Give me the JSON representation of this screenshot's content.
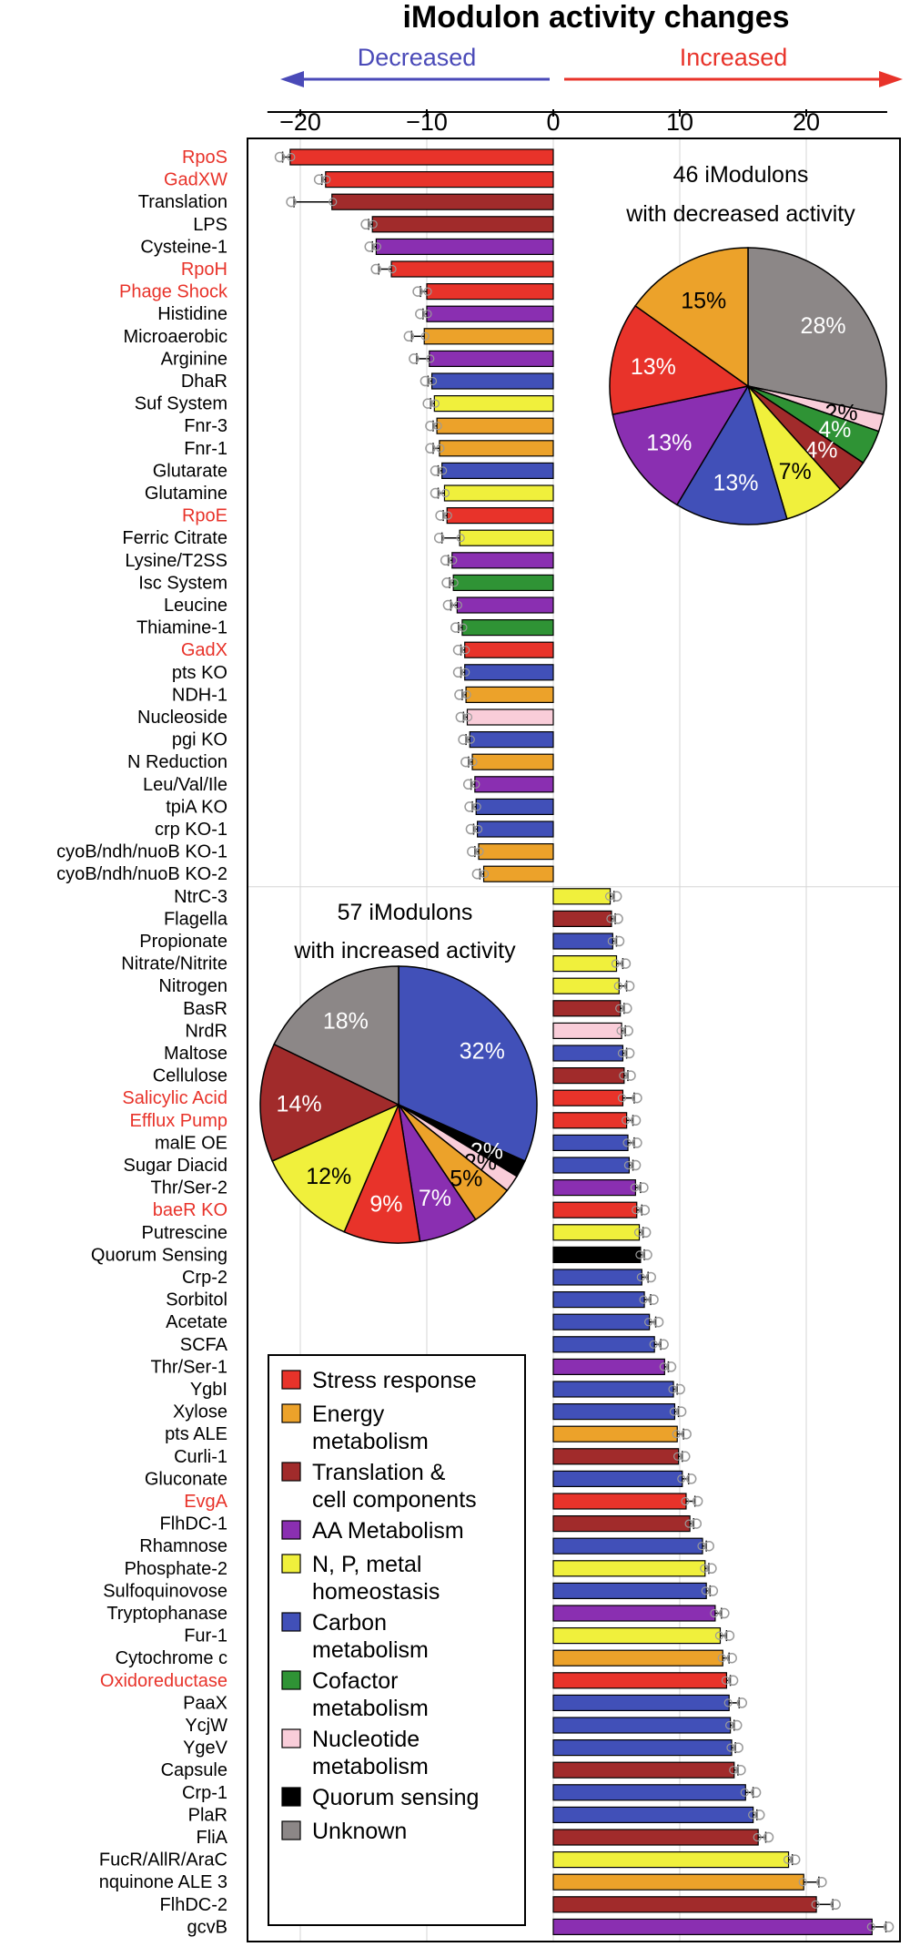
{
  "chart_data": [
    {
      "type": "bar",
      "orientation": "horizontal",
      "title": "iModulon activity changes",
      "direction_labels": {
        "decreased": "Decreased",
        "increased": "Increased"
      },
      "xlim": [
        -23.5,
        27
      ],
      "xticks": [
        -20,
        -10,
        0,
        10,
        20
      ],
      "grid": true,
      "colors": {
        "Stress response": "#e8332a",
        "Energy metabolism": "#eca22a",
        "Translation & cell components": "#a12b2b",
        "AA Metabolism": "#8a2fb1",
        "N, P, metal homeostasis": "#f0f03c",
        "Carbon metabolism": "#4150b8",
        "Cofactor metabolism": "#2f9335",
        "Nucleotide metabolism": "#f9cdd9",
        "Quorum sensing": "#000000",
        "Unknown": "#8c8787"
      },
      "label_colors": {
        "highlight": "#e8332a",
        "normal": "#000000"
      },
      "legend": {
        "position": "bottom-left",
        "entries": [
          {
            "category": "Stress response",
            "lines": [
              "Stress response"
            ]
          },
          {
            "category": "Energy metabolism",
            "lines": [
              "Energy",
              "metabolism"
            ]
          },
          {
            "category": "Translation & cell components",
            "lines": [
              "Translation &",
              "cell components"
            ]
          },
          {
            "category": "AA Metabolism",
            "lines": [
              "AA Metabolism"
            ]
          },
          {
            "category": "N, P, metal homeostasis",
            "lines": [
              "N, P, metal",
              "homeostasis"
            ]
          },
          {
            "category": "Carbon metabolism",
            "lines": [
              "Carbon",
              "metabolism"
            ]
          },
          {
            "category": "Cofactor metabolism",
            "lines": [
              "Cofactor",
              "metabolism"
            ]
          },
          {
            "category": "Nucleotide metabolism",
            "lines": [
              "Nucleotide",
              "metabolism"
            ]
          },
          {
            "category": "Quorum sensing",
            "lines": [
              "Quorum sensing"
            ]
          },
          {
            "category": "Unknown",
            "lines": [
              "Unknown"
            ]
          }
        ]
      },
      "bars": [
        {
          "label": "RpoS",
          "value": -20.8,
          "err": 0.6,
          "category": "Stress response",
          "highlight": true
        },
        {
          "label": "GadXW",
          "value": -18.0,
          "err": 0.3,
          "category": "Stress response",
          "highlight": true
        },
        {
          "label": "Translation",
          "value": -17.5,
          "err": 3.0,
          "category": "Translation & cell components",
          "highlight": false
        },
        {
          "label": "LPS",
          "value": -14.3,
          "err": 0.3,
          "category": "Translation & cell components",
          "highlight": false
        },
        {
          "label": "Cysteine-1",
          "value": -14.0,
          "err": 0.3,
          "category": "AA Metabolism",
          "highlight": false
        },
        {
          "label": "RpoH",
          "value": -12.8,
          "err": 1.0,
          "category": "Stress response",
          "highlight": true
        },
        {
          "label": "Phage Shock",
          "value": -10.0,
          "err": 0.5,
          "category": "Stress response",
          "highlight": true
        },
        {
          "label": "Histidine",
          "value": -10.0,
          "err": 0.3,
          "category": "AA Metabolism",
          "highlight": false
        },
        {
          "label": "Microaerobic",
          "value": -10.2,
          "err": 1.0,
          "category": "Energy metabolism",
          "highlight": false
        },
        {
          "label": "Arginine",
          "value": -9.8,
          "err": 1.0,
          "category": "AA Metabolism",
          "highlight": false
        },
        {
          "label": "DhaR",
          "value": -9.6,
          "err": 0.3,
          "category": "Carbon metabolism",
          "highlight": false
        },
        {
          "label": "Suf System",
          "value": -9.4,
          "err": 0.3,
          "category": "N, P, metal homeostasis",
          "highlight": false
        },
        {
          "label": "Fnr-3",
          "value": -9.2,
          "err": 0.3,
          "category": "Energy metabolism",
          "highlight": false
        },
        {
          "label": "Fnr-1",
          "value": -9.0,
          "err": 0.5,
          "category": "Energy metabolism",
          "highlight": false
        },
        {
          "label": "Glutarate",
          "value": -8.8,
          "err": 0.3,
          "category": "Carbon metabolism",
          "highlight": false
        },
        {
          "label": "Glutamine",
          "value": -8.6,
          "err": 0.5,
          "category": "N, P, metal homeostasis",
          "highlight": false
        },
        {
          "label": "RpoE",
          "value": -8.4,
          "err": 0.3,
          "category": "Stress response",
          "highlight": true
        },
        {
          "label": "Ferric Citrate",
          "value": -7.4,
          "err": 1.4,
          "category": "N, P, metal homeostasis",
          "highlight": false
        },
        {
          "label": "Lysine/T2SS",
          "value": -8.0,
          "err": 0.3,
          "category": "AA Metabolism",
          "highlight": false
        },
        {
          "label": "Isc System",
          "value": -7.9,
          "err": 0.3,
          "category": "Cofactor metabolism",
          "highlight": false
        },
        {
          "label": "Leucine",
          "value": -7.6,
          "err": 0.5,
          "category": "AA Metabolism",
          "highlight": false
        },
        {
          "label": "Thiamine-1",
          "value": -7.2,
          "err": 0.3,
          "category": "Cofactor metabolism",
          "highlight": false
        },
        {
          "label": "GadX",
          "value": -7.0,
          "err": 0.3,
          "category": "Stress response",
          "highlight": true
        },
        {
          "label": "pts KO",
          "value": -7.0,
          "err": 0.3,
          "category": "Carbon metabolism",
          "highlight": false
        },
        {
          "label": "NDH-1",
          "value": -6.9,
          "err": 0.3,
          "category": "Energy metabolism",
          "highlight": false
        },
        {
          "label": "Nucleoside",
          "value": -6.8,
          "err": 0.3,
          "category": "Nucleotide metabolism",
          "highlight": false
        },
        {
          "label": "pgi KO",
          "value": -6.6,
          "err": 0.3,
          "category": "Carbon metabolism",
          "highlight": false
        },
        {
          "label": "N Reduction",
          "value": -6.4,
          "err": 0.3,
          "category": "Energy metabolism",
          "highlight": false
        },
        {
          "label": "Leu/Val/Ile",
          "value": -6.2,
          "err": 0.3,
          "category": "AA Metabolism",
          "highlight": false
        },
        {
          "label": "tpiA KO",
          "value": -6.1,
          "err": 0.3,
          "category": "Carbon metabolism",
          "highlight": false
        },
        {
          "label": "crp KO-1",
          "value": -6.0,
          "err": 0.3,
          "category": "Carbon metabolism",
          "highlight": false
        },
        {
          "label": "cyoB/ndh/nuoB KO-1",
          "value": -5.9,
          "err": 0.3,
          "category": "Energy metabolism",
          "highlight": false
        },
        {
          "label": "cyoB/ndh/nuoB KO-2",
          "value": -5.5,
          "err": 0.3,
          "category": "Energy metabolism",
          "highlight": false
        },
        {
          "label": "NtrC-3",
          "value": 4.5,
          "err": 0.3,
          "category": "N, P, metal homeostasis",
          "highlight": false
        },
        {
          "label": "Flagella",
          "value": 4.6,
          "err": 0.3,
          "category": "Translation & cell components",
          "highlight": false
        },
        {
          "label": "Propionate",
          "value": 4.7,
          "err": 0.3,
          "category": "Carbon metabolism",
          "highlight": false
        },
        {
          "label": "Nitrate/Nitrite",
          "value": 5.0,
          "err": 0.5,
          "category": "N, P, metal homeostasis",
          "highlight": false
        },
        {
          "label": "Nitrogen",
          "value": 5.2,
          "err": 0.6,
          "category": "N, P, metal homeostasis",
          "highlight": false
        },
        {
          "label": "BasR",
          "value": 5.3,
          "err": 0.3,
          "category": "Translation & cell components",
          "highlight": false
        },
        {
          "label": "NrdR",
          "value": 5.4,
          "err": 0.3,
          "category": "Nucleotide metabolism",
          "highlight": false
        },
        {
          "label": "Maltose",
          "value": 5.5,
          "err": 0.3,
          "category": "Carbon metabolism",
          "highlight": false
        },
        {
          "label": "Cellulose",
          "value": 5.6,
          "err": 0.3,
          "category": "Translation & cell components",
          "highlight": false
        },
        {
          "label": "Salicylic Acid",
          "value": 5.5,
          "err": 0.9,
          "category": "Stress response",
          "highlight": true
        },
        {
          "label": "Efflux Pump",
          "value": 5.8,
          "err": 0.5,
          "category": "Stress response",
          "highlight": true
        },
        {
          "label": "malE OE",
          "value": 5.9,
          "err": 0.5,
          "category": "Carbon metabolism",
          "highlight": false
        },
        {
          "label": "Sugar Diacid",
          "value": 6.0,
          "err": 0.3,
          "category": "Carbon metabolism",
          "highlight": false
        },
        {
          "label": "Thr/Ser-2",
          "value": 6.5,
          "err": 0.4,
          "category": "AA Metabolism",
          "highlight": false
        },
        {
          "label": "baeR KO",
          "value": 6.6,
          "err": 0.4,
          "category": "Stress response",
          "highlight": true
        },
        {
          "label": "Putrescine",
          "value": 6.8,
          "err": 0.3,
          "category": "N, P, metal homeostasis",
          "highlight": false
        },
        {
          "label": "Quorum Sensing",
          "value": 6.9,
          "err": 0.3,
          "category": "Quorum sensing",
          "highlight": false
        },
        {
          "label": "Crp-2",
          "value": 7.0,
          "err": 0.5,
          "category": "Carbon metabolism",
          "highlight": false
        },
        {
          "label": "Sorbitol",
          "value": 7.2,
          "err": 0.5,
          "category": "Carbon metabolism",
          "highlight": false
        },
        {
          "label": "Acetate",
          "value": 7.6,
          "err": 0.5,
          "category": "Carbon metabolism",
          "highlight": false
        },
        {
          "label": "SCFA",
          "value": 8.0,
          "err": 0.5,
          "category": "Carbon metabolism",
          "highlight": false
        },
        {
          "label": "Thr/Ser-1",
          "value": 8.8,
          "err": 0.3,
          "category": "AA Metabolism",
          "highlight": false
        },
        {
          "label": "YgbI",
          "value": 9.5,
          "err": 0.3,
          "category": "Carbon metabolism",
          "highlight": false
        },
        {
          "label": "Xylose",
          "value": 9.6,
          "err": 0.3,
          "category": "Carbon metabolism",
          "highlight": false
        },
        {
          "label": "pts ALE",
          "value": 9.8,
          "err": 0.5,
          "category": "Energy metabolism",
          "highlight": false
        },
        {
          "label": "Curli-1",
          "value": 9.9,
          "err": 0.3,
          "category": "Translation & cell components",
          "highlight": false
        },
        {
          "label": "Gluconate",
          "value": 10.2,
          "err": 0.5,
          "category": "Carbon metabolism",
          "highlight": false
        },
        {
          "label": "EvgA",
          "value": 10.5,
          "err": 0.7,
          "category": "Stress response",
          "highlight": true
        },
        {
          "label": "FlhDC-1",
          "value": 10.8,
          "err": 0.3,
          "category": "Translation & cell components",
          "highlight": false
        },
        {
          "label": "Rhamnose",
          "value": 11.8,
          "err": 0.3,
          "category": "Carbon metabolism",
          "highlight": false
        },
        {
          "label": "Phosphate-2",
          "value": 12.0,
          "err": 0.3,
          "category": "N, P, metal homeostasis",
          "highlight": false
        },
        {
          "label": "Sulfoquinovose",
          "value": 12.1,
          "err": 0.3,
          "category": "Carbon metabolism",
          "highlight": false
        },
        {
          "label": "Tryptophanase",
          "value": 12.8,
          "err": 0.5,
          "category": "AA Metabolism",
          "highlight": false
        },
        {
          "label": "Fur-1",
          "value": 13.2,
          "err": 0.5,
          "category": "N, P, metal homeostasis",
          "highlight": false
        },
        {
          "label": "Cytochrome c",
          "value": 13.4,
          "err": 0.5,
          "category": "Energy metabolism",
          "highlight": false
        },
        {
          "label": "Oxidoreductase",
          "value": 13.7,
          "err": 0.3,
          "category": "Stress response",
          "highlight": true
        },
        {
          "label": "PaaX",
          "value": 13.9,
          "err": 0.8,
          "category": "Carbon metabolism",
          "highlight": false
        },
        {
          "label": "YcjW",
          "value": 14.0,
          "err": 0.3,
          "category": "Carbon metabolism",
          "highlight": false
        },
        {
          "label": "YgeV",
          "value": 14.1,
          "err": 0.3,
          "category": "Carbon metabolism",
          "highlight": false
        },
        {
          "label": "Capsule",
          "value": 14.3,
          "err": 0.3,
          "category": "Translation & cell components",
          "highlight": false
        },
        {
          "label": "Crp-1",
          "value": 15.2,
          "err": 0.6,
          "category": "Carbon metabolism",
          "highlight": false
        },
        {
          "label": "PlaR",
          "value": 15.8,
          "err": 0.3,
          "category": "Carbon metabolism",
          "highlight": false
        },
        {
          "label": "FliA",
          "value": 16.2,
          "err": 0.6,
          "category": "Translation & cell components",
          "highlight": false
        },
        {
          "label": "FucR/AllR/AraC",
          "value": 18.6,
          "err": 0.3,
          "category": "N, P, metal homeostasis",
          "highlight": false
        },
        {
          "label": "nquinone ALE 3",
          "value": 19.8,
          "err": 1.2,
          "category": "Energy metabolism",
          "highlight": false
        },
        {
          "label": "FlhDC-2",
          "value": 20.8,
          "err": 1.3,
          "category": "Translation & cell components",
          "highlight": false
        },
        {
          "label": "gcvB",
          "value": 25.2,
          "err": 1.1,
          "category": "AA Metabolism",
          "highlight": false
        }
      ]
    },
    {
      "type": "pie",
      "title": "46 iModulons with decreased activity",
      "title_lines": [
        "46 iModulons",
        "with decreased activity"
      ],
      "slices": [
        {
          "category": "Unknown",
          "value": 28,
          "label": "28%"
        },
        {
          "category": "Nucleotide metabolism",
          "value": 2,
          "label": "2%"
        },
        {
          "category": "Cofactor metabolism",
          "value": 4,
          "label": "4%"
        },
        {
          "category": "Translation & cell components",
          "value": 4,
          "label": "4%"
        },
        {
          "category": "N, P, metal homeostasis",
          "value": 7,
          "label": "7%"
        },
        {
          "category": "Carbon metabolism",
          "value": 13,
          "label": "13%"
        },
        {
          "category": "AA Metabolism",
          "value": 13,
          "label": "13%"
        },
        {
          "category": "Stress response",
          "value": 13,
          "label": "13%"
        },
        {
          "category": "Energy metabolism",
          "value": 15,
          "label": "15%"
        }
      ]
    },
    {
      "type": "pie",
      "title": "57 iModulons with increased activity",
      "title_lines": [
        "57 iModulons",
        "with increased activity"
      ],
      "slices": [
        {
          "category": "Carbon metabolism",
          "value": 32,
          "label": "32%"
        },
        {
          "category": "Quorum sensing",
          "value": 2,
          "label": "2%"
        },
        {
          "category": "Nucleotide metabolism",
          "value": 2,
          "label": "2%"
        },
        {
          "category": "Energy metabolism",
          "value": 5,
          "label": "5%"
        },
        {
          "category": "AA Metabolism",
          "value": 7,
          "label": "7%"
        },
        {
          "category": "Stress response",
          "value": 9,
          "label": "9%"
        },
        {
          "category": "N, P, metal homeostasis",
          "value": 12,
          "label": "12%"
        },
        {
          "category": "Translation & cell components",
          "value": 14,
          "label": "14%"
        },
        {
          "category": "Unknown",
          "value": 18,
          "label": "18%"
        }
      ]
    }
  ]
}
